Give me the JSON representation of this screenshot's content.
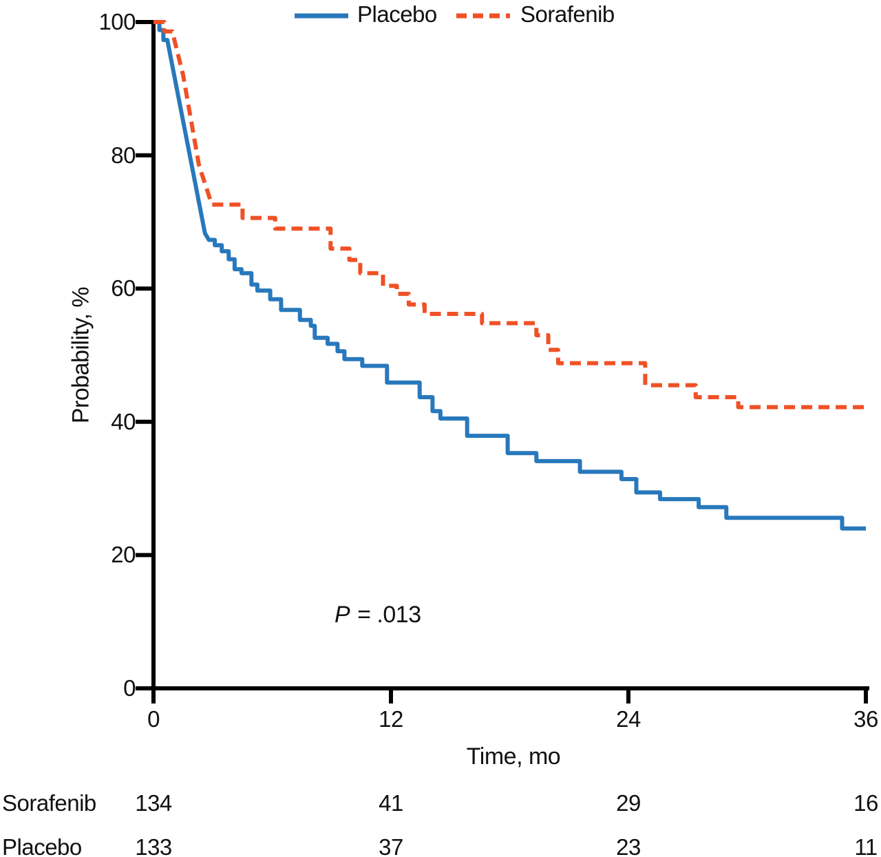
{
  "chart_data": {
    "type": "line",
    "subtype": "kaplan-meier-step",
    "title": "",
    "xlabel": "Time, mo",
    "ylabel": "Probability, %",
    "xlim": [
      0,
      36
    ],
    "ylim": [
      0,
      100
    ],
    "x_ticks": [
      0,
      12,
      24,
      36
    ],
    "y_ticks": [
      0,
      20,
      40,
      60,
      80,
      100
    ],
    "grid": false,
    "legend_position": "top",
    "axis_color": "#000000",
    "annotation": {
      "p_label": "P",
      "p_text": " = .013"
    },
    "series": [
      {
        "name": "Placebo",
        "color": "#2878BC",
        "style": "solid",
        "steps": [
          [
            0,
            100
          ],
          [
            0.3,
            98.8
          ],
          [
            0.5,
            97.3
          ],
          [
            0.7,
            97.3
          ],
          [
            2.6,
            68.3,
            "l"
          ],
          [
            2.8,
            67.3,
            "l"
          ],
          [
            3.1,
            66.5
          ],
          [
            3.45,
            65.6
          ],
          [
            3.8,
            64.4
          ],
          [
            4.1,
            62.9
          ],
          [
            4.45,
            62.3
          ],
          [
            4.95,
            60.6
          ],
          [
            5.25,
            59.7
          ],
          [
            5.9,
            58.4
          ],
          [
            6.45,
            56.8
          ],
          [
            7.4,
            55.3
          ],
          [
            7.95,
            54.4
          ],
          [
            8.15,
            52.6
          ],
          [
            8.8,
            51.7
          ],
          [
            9.3,
            50.6
          ],
          [
            9.65,
            49.4
          ],
          [
            10.55,
            48.4
          ],
          [
            11.8,
            45.9
          ],
          [
            13.45,
            43.7
          ],
          [
            14.1,
            41.6
          ],
          [
            14.5,
            40.5
          ],
          [
            15.85,
            37.9
          ],
          [
            17.9,
            35.3
          ],
          [
            19.35,
            34.1
          ],
          [
            21.55,
            32.5
          ],
          [
            23.65,
            31.4
          ],
          [
            24.4,
            29.4
          ],
          [
            25.6,
            28.4
          ],
          [
            27.55,
            27.2
          ],
          [
            28.95,
            25.6
          ],
          [
            34.8,
            24
          ],
          [
            36,
            24
          ]
        ]
      },
      {
        "name": "Sorafenib",
        "color": "#EF5126",
        "style": "dashed",
        "steps": [
          [
            0,
            100
          ],
          [
            0.55,
            98.6
          ],
          [
            0.95,
            98.6
          ],
          [
            1.5,
            92,
            "l"
          ],
          [
            2.3,
            78.5,
            "l"
          ],
          [
            2.95,
            72.6,
            "l"
          ],
          [
            4.5,
            70.6
          ],
          [
            6.15,
            69
          ],
          [
            8.95,
            66
          ],
          [
            9.9,
            64.3
          ],
          [
            10.45,
            62.3
          ],
          [
            11.6,
            60.4
          ],
          [
            12.3,
            59.2
          ],
          [
            12.9,
            57.6
          ],
          [
            13.7,
            56.2
          ],
          [
            16.6,
            54.8
          ],
          [
            19.35,
            53
          ],
          [
            19.95,
            50.8
          ],
          [
            20.45,
            48.8
          ],
          [
            24.85,
            45.5
          ],
          [
            27.4,
            43.7
          ],
          [
            29.55,
            42.2
          ],
          [
            36,
            42.2
          ]
        ]
      }
    ],
    "at_risk": {
      "times": [
        0,
        12,
        24,
        36
      ],
      "rows": [
        {
          "label": "Sorafenib",
          "counts": [
            134,
            41,
            29,
            16
          ]
        },
        {
          "label": "Placebo",
          "counts": [
            133,
            37,
            23,
            11
          ]
        }
      ]
    }
  }
}
